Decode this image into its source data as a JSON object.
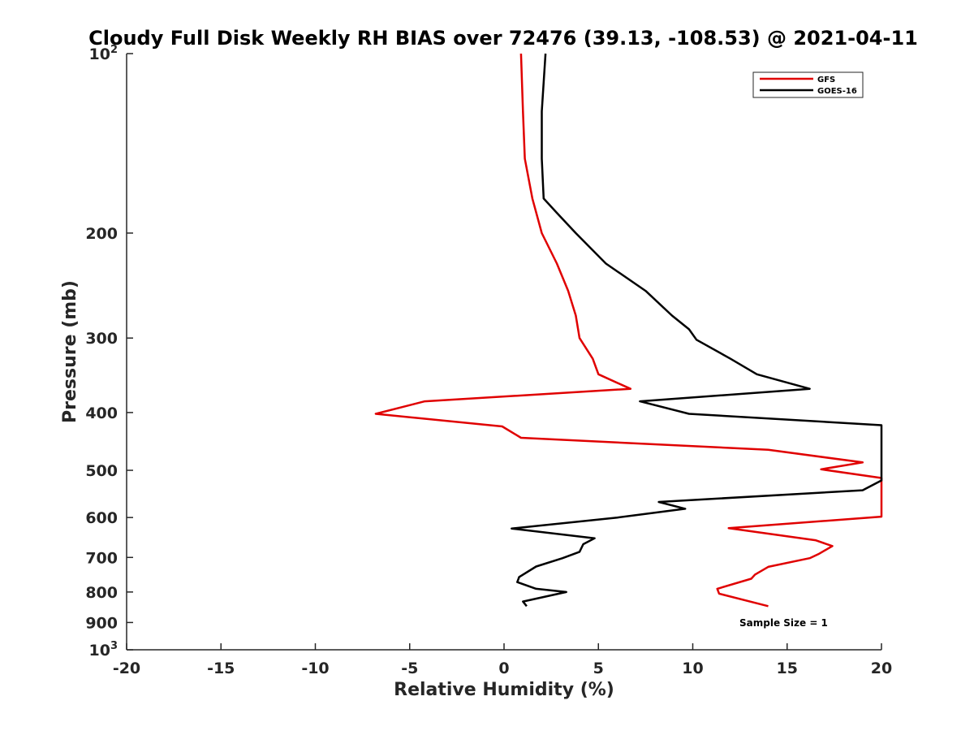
{
  "chart_data": {
    "type": "line",
    "title": "Cloudy Full Disk Weekly RH BIAS over 72476 (39.13, -108.53) @ 2021-04-11",
    "xlabel": "Relative Humidity (%)",
    "ylabel": "Pressure (mb)",
    "xlim": [
      -20,
      20
    ],
    "ylim": [
      100,
      1000
    ],
    "y_scale": "log",
    "y_reversed": true,
    "grid": false,
    "legend_position": "top-right",
    "x_ticks": [
      -20,
      -15,
      -10,
      -5,
      0,
      5,
      10,
      15,
      20
    ],
    "x_tick_labels": [
      "-20",
      "-15",
      "-10",
      "-5",
      "0",
      "5",
      "10",
      "15",
      "20"
    ],
    "y_ticks": [
      {
        "value": 100,
        "base": "10",
        "exp": "2"
      },
      {
        "value": 200,
        "label": "200"
      },
      {
        "value": 300,
        "label": "300"
      },
      {
        "value": 400,
        "label": "400"
      },
      {
        "value": 500,
        "label": "500"
      },
      {
        "value": 600,
        "label": "600"
      },
      {
        "value": 700,
        "label": "700"
      },
      {
        "value": 800,
        "label": "800"
      },
      {
        "value": 900,
        "label": "900"
      },
      {
        "value": 1000,
        "base": "10",
        "exp": "3"
      }
    ],
    "annotation": "Sample Size = 1",
    "series": [
      {
        "name": "GFS",
        "color": "#e00000",
        "points": [
          [
            0.9,
            100
          ],
          [
            1.0,
            125
          ],
          [
            1.1,
            150
          ],
          [
            1.5,
            175
          ],
          [
            2.0,
            200
          ],
          [
            2.8,
            225
          ],
          [
            3.4,
            250
          ],
          [
            3.8,
            275
          ],
          [
            4.0,
            300
          ],
          [
            4.7,
            325
          ],
          [
            5.0,
            345
          ],
          [
            6.7,
            365
          ],
          [
            -4.2,
            383
          ],
          [
            -6.8,
            402
          ],
          [
            -0.1,
            422
          ],
          [
            0.9,
            441
          ],
          [
            14.0,
            462
          ],
          [
            19.0,
            485
          ],
          [
            16.8,
            498
          ],
          [
            20.0,
            515
          ],
          [
            20.0,
            598
          ],
          [
            11.9,
            625
          ],
          [
            16.5,
            655
          ],
          [
            17.4,
            670
          ],
          [
            16.7,
            690
          ],
          [
            16.2,
            702
          ],
          [
            14.0,
            726
          ],
          [
            13.3,
            748
          ],
          [
            13.1,
            760
          ],
          [
            11.3,
            790
          ],
          [
            11.4,
            805
          ],
          [
            14.0,
            845
          ]
        ]
      },
      {
        "name": "GOES-16",
        "color": "#000000",
        "points": [
          [
            2.2,
            100
          ],
          [
            2.0,
            125
          ],
          [
            2.0,
            150
          ],
          [
            2.1,
            175
          ],
          [
            2.8,
            185
          ],
          [
            3.8,
            200
          ],
          [
            5.4,
            225
          ],
          [
            7.5,
            250
          ],
          [
            8.9,
            275
          ],
          [
            9.8,
            290
          ],
          [
            10.2,
            302
          ],
          [
            12.0,
            325
          ],
          [
            13.4,
            345
          ],
          [
            16.2,
            365
          ],
          [
            7.2,
            383
          ],
          [
            9.8,
            402
          ],
          [
            20.0,
            420
          ],
          [
            20.0,
            520
          ],
          [
            19.0,
            540
          ],
          [
            8.2,
            565
          ],
          [
            9.6,
            580
          ],
          [
            6.0,
            600
          ],
          [
            0.4,
            626
          ],
          [
            4.8,
            650
          ],
          [
            4.2,
            665
          ],
          [
            4.0,
            685
          ],
          [
            3.1,
            702
          ],
          [
            1.7,
            725
          ],
          [
            0.8,
            755
          ],
          [
            0.7,
            770
          ],
          [
            1.7,
            790
          ],
          [
            3.3,
            800
          ],
          [
            1.0,
            830
          ],
          [
            1.2,
            845
          ]
        ]
      }
    ]
  }
}
